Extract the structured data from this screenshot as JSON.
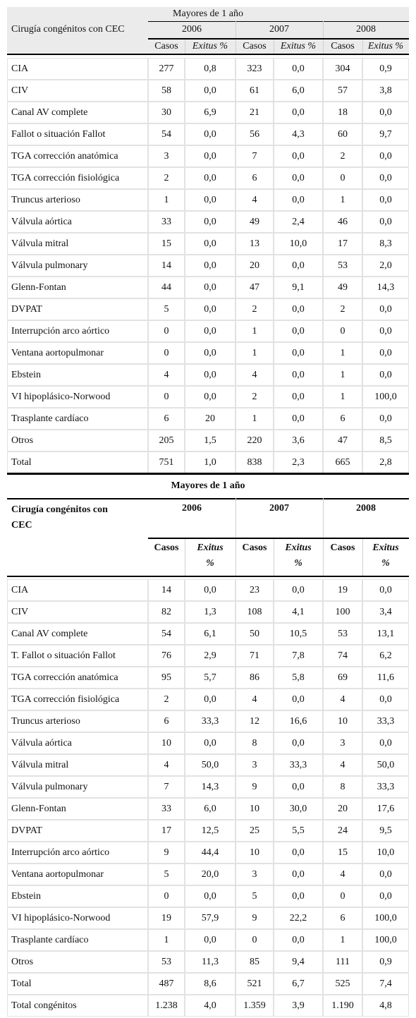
{
  "tables": [
    {
      "title": "Mayores de 1 año",
      "header": {
        "first": "Cirugía congénitos con CEC",
        "years": [
          "2006",
          "2007",
          "2008"
        ],
        "sub": [
          "Casos",
          "Exitus %"
        ]
      },
      "rows": [
        [
          "CIA",
          "277",
          "0,8",
          "323",
          "0,0",
          "304",
          "0,9"
        ],
        [
          "CIV",
          "58",
          "0,0",
          "61",
          "6,0",
          "57",
          "3,8"
        ],
        [
          "Canal AV complete",
          "30",
          "6,9",
          "21",
          "0,0",
          "18",
          "0,0"
        ],
        [
          "Fallot o situación Fallot",
          "54",
          "0,0",
          "56",
          "4,3",
          "60",
          "9,7"
        ],
        [
          "TGA corrección anatómica",
          "3",
          "0,0",
          "7",
          "0,0",
          "2",
          "0,0"
        ],
        [
          "TGA corrección fisiológica",
          "2",
          "0,0",
          "6",
          "0,0",
          "0",
          "0,0"
        ],
        [
          "Truncus arterioso",
          "1",
          "0,0",
          "4",
          "0,0",
          "1",
          "0,0"
        ],
        [
          "Válvula aórtica",
          "33",
          "0,0",
          "49",
          "2,4",
          "46",
          "0,0"
        ],
        [
          "Válvula mitral",
          "15",
          "0,0",
          "13",
          "10,0",
          "17",
          "8,3"
        ],
        [
          "Válvula pulmonary",
          "14",
          "0,0",
          "20",
          "0,0",
          "53",
          "2,0"
        ],
        [
          "Glenn-Fontan",
          "44",
          "0,0",
          "47",
          "9,1",
          "49",
          "14,3"
        ],
        [
          "DVPAT",
          "5",
          "0,0",
          "2",
          "0,0",
          "2",
          "0,0"
        ],
        [
          "Interrupción arco aórtico",
          "0",
          "0,0",
          "1",
          "0,0",
          "0",
          "0,0"
        ],
        [
          "Ventana aortopulmonar",
          "0",
          "0,0",
          "1",
          "0,0",
          "1",
          "0,0"
        ],
        [
          "Ebstein",
          "4",
          "0,0",
          "4",
          "0,0",
          "1",
          "0,0"
        ],
        [
          "VI hipoplásico-Norwood",
          "0",
          "0,0",
          "2",
          "0,0",
          "1",
          "100,0"
        ],
        [
          "Trasplante cardíaco",
          "6",
          "20",
          "1",
          "0,0",
          "6",
          "0,0"
        ],
        [
          "Otros",
          "205",
          "1,5",
          "220",
          "3,6",
          "47",
          "8,5"
        ],
        [
          "Total",
          "751",
          "1,0",
          "838",
          "2,3",
          "665",
          "2,8"
        ]
      ]
    },
    {
      "title": "Mayores de 1 año",
      "header": {
        "first": "Cirugía congénitos con CEC",
        "years": [
          "2006",
          "2007",
          "2008"
        ],
        "sub": [
          "Casos",
          "Exitus %"
        ]
      },
      "rows": [
        [
          "CIA",
          "14",
          "0,0",
          "23",
          "0,0",
          "19",
          "0,0"
        ],
        [
          "CIV",
          "82",
          "1,3",
          "108",
          "4,1",
          "100",
          "3,4"
        ],
        [
          "Canal AV complete",
          "54",
          "6,1",
          "50",
          "10,5",
          "53",
          "13,1"
        ],
        [
          "T. Fallot o situación Fallot",
          "76",
          "2,9",
          "71",
          "7,8",
          "74",
          "6,2"
        ],
        [
          "TGA corrección anatómica",
          "95",
          "5,7",
          "86",
          "5,8",
          "69",
          "11,6"
        ],
        [
          "TGA corrección fisiológica",
          "2",
          "0,0",
          "4",
          "0,0",
          "4",
          "0,0"
        ],
        [
          "Truncus arterioso",
          "6",
          "33,3",
          "12",
          "16,6",
          "10",
          "33,3"
        ],
        [
          "Válvula aórtica",
          "10",
          "0,0",
          "8",
          "0,0",
          "3",
          "0,0"
        ],
        [
          "Válvula mitral",
          "4",
          "50,0",
          "3",
          "33,3",
          "4",
          "50,0"
        ],
        [
          "Válvula pulmonary",
          "7",
          "14,3",
          "9",
          "0,0",
          "8",
          "33,3"
        ],
        [
          "Glenn-Fontan",
          "33",
          "6,0",
          "10",
          "30,0",
          "20",
          "17,6"
        ],
        [
          "DVPAT",
          "17",
          "12,5",
          "25",
          "5,5",
          "24",
          "9,5"
        ],
        [
          "Interrupción arco aórtico",
          "9",
          "44,4",
          "10",
          "0,0",
          "15",
          "10,0"
        ],
        [
          "Ventana aortopulmonar",
          "5",
          "20,0",
          "3",
          "0,0",
          "4",
          "0,0"
        ],
        [
          "Ebstein",
          "0",
          "0,0",
          "5",
          "0,0",
          "0",
          "0,0"
        ],
        [
          "VI hipoplásico-Norwood",
          "19",
          "57,9",
          "9",
          "22,2",
          "6",
          "100,0"
        ],
        [
          "Trasplante cardíaco",
          "1",
          "0,0",
          "0",
          "0,0",
          "1",
          "100,0"
        ],
        [
          "Otros",
          "53",
          "11,3",
          "85",
          "9,4",
          "111",
          "0,9"
        ],
        [
          "Total",
          "487",
          "8,6",
          "521",
          "6,7",
          "525",
          "7,4"
        ],
        [
          "Total congénitos",
          "1.238",
          "4,0",
          "1.359",
          "3,9",
          "1.190",
          "4,8"
        ]
      ]
    }
  ]
}
